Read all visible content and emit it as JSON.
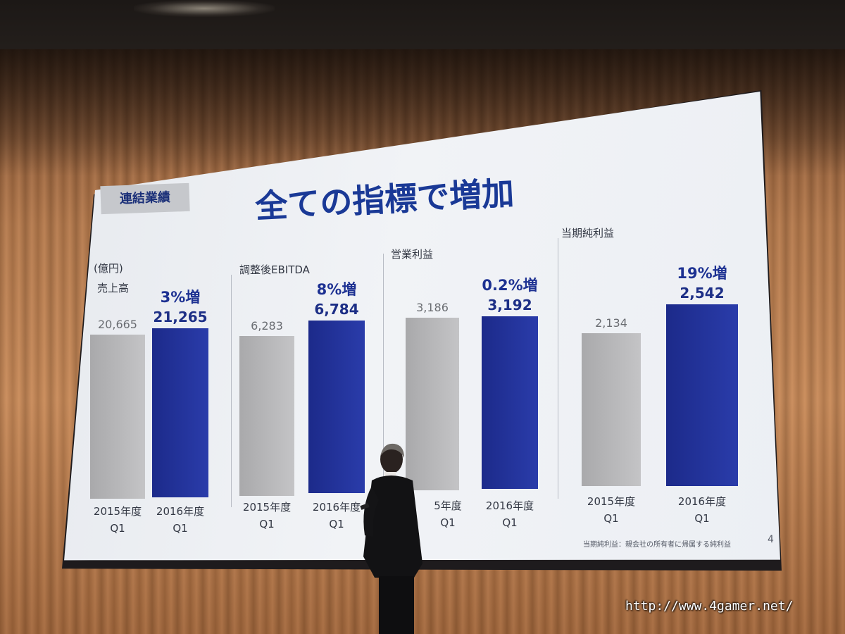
{
  "slide": {
    "section_badge": "連結業績",
    "title": "全ての指標で増加",
    "unit_label": "(億円)",
    "footnote": "当期純利益：親会社の所有者に帰属する純利益",
    "page_number": "4"
  },
  "chart_data": [
    {
      "type": "bar",
      "title": "売上高",
      "categories": [
        "2015年度 Q1",
        "2016年度 Q1"
      ],
      "values": [
        20665,
        21265
      ],
      "value_labels": [
        "20,665",
        "21,265"
      ],
      "growth_label": "3%増"
    },
    {
      "type": "bar",
      "title": "調整後EBITDA",
      "categories": [
        "2015年度 Q1",
        "2016年度 Q1"
      ],
      "values": [
        6283,
        6784
      ],
      "value_labels": [
        "6,283",
        "6,784"
      ],
      "growth_label": "8%増"
    },
    {
      "type": "bar",
      "title": "営業利益",
      "categories": [
        "2015年度 Q1",
        "2016年度 Q1"
      ],
      "values": [
        3186,
        3192
      ],
      "value_labels": [
        "3,186",
        "3,192"
      ],
      "growth_label": "0.2%増"
    },
    {
      "type": "bar",
      "title": "当期純利益",
      "categories": [
        "2015年度 Q1",
        "2016年度 Q1"
      ],
      "values": [
        2134,
        2542
      ],
      "value_labels": [
        "2,134",
        "2,542"
      ],
      "growth_label": "19%増"
    }
  ],
  "x_labels": {
    "fy2015": [
      "2015年度",
      "Q1"
    ],
    "fy2015_partial": [
      "5年度",
      "Q1"
    ],
    "fy2016": [
      "2016年度",
      "Q1"
    ]
  },
  "watermark": "http://www.4gamer.net/",
  "colors": {
    "bar_2015": "#b4b4b6",
    "bar_2016": "#24349c",
    "title": "#1a3996"
  }
}
